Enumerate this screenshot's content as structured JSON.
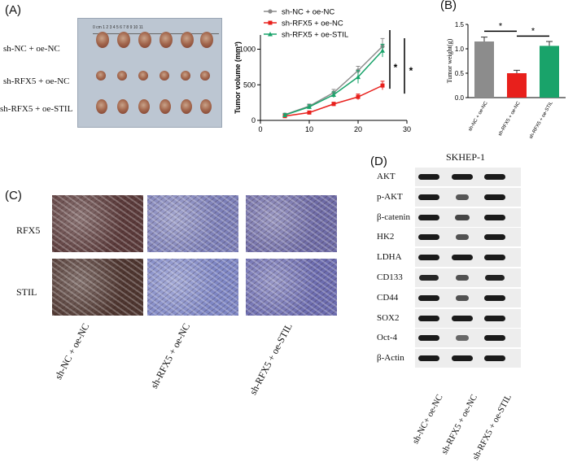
{
  "panels": {
    "a": "(A)",
    "b": "(B)",
    "c": "(C)",
    "d": "(D)"
  },
  "groups": [
    "sh-NC + oe-NC",
    "sh-RFX5 + oe-NC",
    "sh-RFX5 + oe-STIL"
  ],
  "ruler_label": "0 cm 1  2  3  4  5  6  7  8  9  10  11",
  "colors": {
    "nc": "#8c8c8c",
    "rfx5": "#e8201c",
    "stil": "#19a36a"
  },
  "chart_data": [
    {
      "type": "line",
      "x": [
        5,
        10,
        15,
        20,
        25
      ],
      "series": [
        {
          "name": "sh-NC + oe-NC",
          "values": [
            80,
            200,
            390,
            700,
            1040
          ],
          "errors": [
            20,
            30,
            45,
            60,
            110
          ]
        },
        {
          "name": "sh-RFX5 + oe-NC",
          "values": [
            60,
            110,
            230,
            330,
            490
          ],
          "errors": [
            15,
            20,
            25,
            40,
            60
          ]
        },
        {
          "name": "sh-RFX5 + oe-STIL",
          "values": [
            75,
            190,
            360,
            610,
            980
          ],
          "errors": [
            20,
            30,
            40,
            90,
            90
          ]
        }
      ],
      "xlabel": "",
      "ylabel": "Tumor volume (mm³)",
      "xlim": [
        0,
        30
      ],
      "ylim": [
        0,
        1200
      ],
      "xticks": [
        0,
        10,
        20,
        30
      ],
      "yticks": [
        0,
        500,
        1000
      ],
      "significance": [
        "*",
        "*"
      ],
      "legend": "top"
    },
    {
      "type": "bar",
      "categories": [
        "sh-NC + oe-NC",
        "sh-RFX5 + oe-NC",
        "sh-RFX5 + oe-STIL"
      ],
      "values": [
        1.15,
        0.5,
        1.06
      ],
      "errors": [
        0.09,
        0.06,
        0.09
      ],
      "ylabel": "Tumor weight(g)",
      "ylim": [
        0,
        1.5
      ],
      "yticks": [
        "0.0",
        "0.5",
        "1.0",
        "1.5"
      ],
      "significance": [
        "*",
        "*"
      ]
    }
  ],
  "ihc": {
    "rows": [
      "RFX5",
      "STIL"
    ],
    "columns": [
      "sh-NC + oe-NC",
      "sh-RFX5 + oe-NC",
      "sh-RFX5 + oe-STIL"
    ]
  },
  "western": {
    "title": "SKHEP-1",
    "proteins": [
      "AKT",
      "p-AKT",
      "β-catenin",
      "HK2",
      "LDHA",
      "CD133",
      "CD44",
      "SOX2",
      "Oct-4",
      "β-Actin"
    ],
    "intensity": [
      [
        1.0,
        1.0,
        1.0
      ],
      [
        1.0,
        0.55,
        1.0
      ],
      [
        1.0,
        0.7,
        1.0
      ],
      [
        1.0,
        0.6,
        1.0
      ],
      [
        1.0,
        1.0,
        1.0
      ],
      [
        0.9,
        0.6,
        0.95
      ],
      [
        1.0,
        0.6,
        1.0
      ],
      [
        1.0,
        1.0,
        1.0
      ],
      [
        1.0,
        0.45,
        1.0
      ],
      [
        1.0,
        1.0,
        1.0
      ]
    ],
    "columns": [
      "sh-NC+ oe-NC",
      "sh-RFX5 + oe-NC",
      "sh-RFX5 + oe-STIL"
    ]
  }
}
